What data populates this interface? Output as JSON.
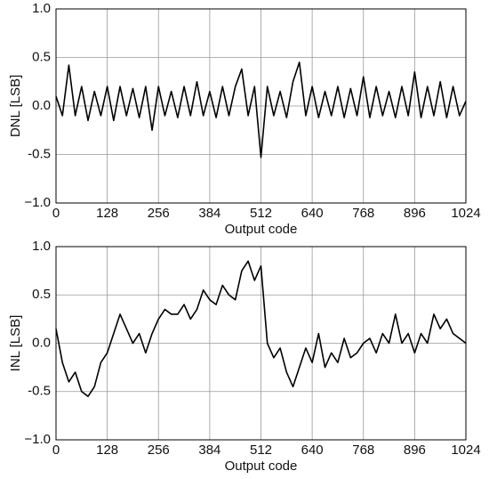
{
  "chart_data": [
    {
      "type": "line",
      "ylabel": "DNL [LSB]",
      "xlabel": "Output code",
      "x": [
        0,
        16,
        32,
        48,
        64,
        80,
        96,
        112,
        128,
        144,
        160,
        176,
        192,
        208,
        224,
        240,
        256,
        272,
        288,
        304,
        320,
        336,
        352,
        368,
        384,
        400,
        416,
        432,
        448,
        464,
        480,
        496,
        512,
        528,
        544,
        560,
        576,
        592,
        608,
        624,
        640,
        656,
        672,
        688,
        704,
        720,
        736,
        752,
        768,
        784,
        800,
        816,
        832,
        848,
        864,
        880,
        896,
        912,
        928,
        944,
        960,
        976,
        992,
        1008,
        1024
      ],
      "series": [
        {
          "color": "#000000",
          "values": [
            0.1,
            -0.1,
            0.42,
            -0.1,
            0.2,
            -0.15,
            0.15,
            -0.1,
            0.2,
            -0.15,
            0.2,
            -0.1,
            0.18,
            -0.12,
            0.2,
            -0.25,
            0.2,
            -0.1,
            0.15,
            -0.12,
            0.2,
            -0.1,
            0.25,
            -0.1,
            0.15,
            -0.12,
            0.2,
            -0.1,
            0.2,
            0.38,
            -0.1,
            0.2,
            -0.53,
            0.2,
            -0.1,
            0.15,
            -0.12,
            0.25,
            0.45,
            -0.1,
            0.2,
            -0.12,
            0.15,
            -0.1,
            0.2,
            -0.12,
            0.18,
            -0.1,
            0.3,
            -0.12,
            0.2,
            -0.1,
            0.15,
            -0.12,
            0.2,
            -0.1,
            0.35,
            -0.12,
            0.2,
            -0.1,
            0.25,
            -0.12,
            0.2,
            -0.1,
            0.05
          ]
        }
      ],
      "xlim": [
        0,
        1024
      ],
      "xticks": [
        0,
        128,
        256,
        384,
        512,
        640,
        768,
        896,
        1024
      ],
      "ylim": [
        -1,
        1
      ],
      "yticks": [
        {
          "value": -1,
          "label": "−1.0"
        },
        -0.5,
        {
          "value": 0,
          "label": "0.0"
        },
        0.5,
        {
          "value": 1,
          "label": "1.0"
        }
      ],
      "grid": true
    },
    {
      "type": "line",
      "ylabel": "INL [LSB]",
      "xlabel": "Output code",
      "x": [
        0,
        16,
        32,
        48,
        64,
        80,
        96,
        112,
        128,
        144,
        160,
        176,
        192,
        208,
        224,
        240,
        256,
        272,
        288,
        304,
        320,
        336,
        352,
        368,
        384,
        400,
        416,
        432,
        448,
        464,
        480,
        496,
        512,
        528,
        544,
        560,
        576,
        592,
        608,
        624,
        640,
        656,
        672,
        688,
        704,
        720,
        736,
        752,
        768,
        784,
        800,
        816,
        832,
        848,
        864,
        880,
        896,
        912,
        928,
        944,
        960,
        976,
        992,
        1008,
        1024
      ],
      "series": [
        {
          "color": "#000000",
          "values": [
            0.15,
            -0.2,
            -0.4,
            -0.3,
            -0.5,
            -0.55,
            -0.45,
            -0.2,
            -0.1,
            0.1,
            0.3,
            0.15,
            0.0,
            0.1,
            -0.1,
            0.1,
            0.25,
            0.35,
            0.3,
            0.3,
            0.4,
            0.25,
            0.35,
            0.55,
            0.45,
            0.4,
            0.6,
            0.5,
            0.45,
            0.75,
            0.85,
            0.65,
            0.8,
            0.0,
            -0.15,
            -0.05,
            -0.3,
            -0.45,
            -0.25,
            -0.05,
            -0.2,
            0.1,
            -0.25,
            -0.1,
            -0.2,
            0.05,
            -0.15,
            -0.1,
            0.0,
            0.05,
            -0.1,
            0.1,
            0.0,
            0.3,
            0.0,
            0.1,
            -0.1,
            0.1,
            0.0,
            0.3,
            0.15,
            0.25,
            0.1,
            0.05,
            0.0
          ]
        }
      ],
      "xlim": [
        0,
        1024
      ],
      "xticks": [
        0,
        128,
        256,
        384,
        512,
        640,
        768,
        896,
        1024
      ],
      "ylim": [
        -1,
        1
      ],
      "yticks": [
        {
          "value": -1,
          "label": "−1.0"
        },
        -0.5,
        {
          "value": 0,
          "label": "0.0"
        },
        0.5,
        {
          "value": 1,
          "label": "1.0"
        }
      ],
      "grid": true
    }
  ]
}
